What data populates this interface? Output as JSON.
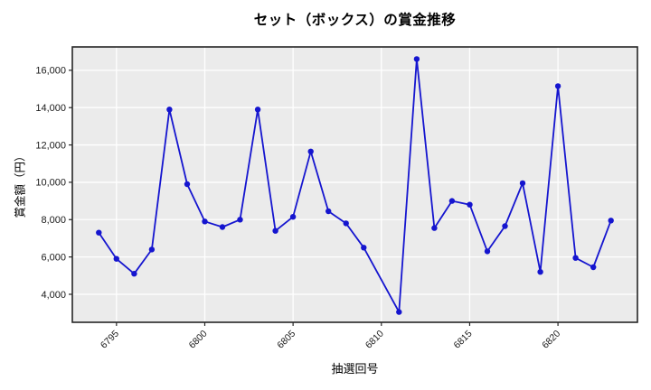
{
  "chart_data": {
    "type": "line",
    "title": "セット（ボックス）の賞金推移",
    "xlabel": "抽選回号",
    "ylabel": "賞金額（円）",
    "x": [
      6794,
      6795,
      6796,
      6797,
      6798,
      6799,
      6800,
      6801,
      6802,
      6803,
      6804,
      6805,
      6806,
      6807,
      6808,
      6809,
      6811,
      6812,
      6813,
      6814,
      6815,
      6816,
      6817,
      6818,
      6819,
      6820,
      6821,
      6822,
      6823
    ],
    "y": [
      7300,
      5900,
      5100,
      6400,
      13900,
      9900,
      7900,
      7600,
      8000,
      13900,
      7400,
      8150,
      11650,
      8450,
      7800,
      6500,
      3050,
      16600,
      7550,
      9000,
      8800,
      6300,
      7650,
      9950,
      5200,
      15150,
      5950,
      5450,
      7950
    ],
    "x_ticks": [
      6795,
      6800,
      6805,
      6810,
      6815,
      6820
    ],
    "y_ticks": [
      4000,
      6000,
      8000,
      10000,
      12000,
      14000,
      16000
    ],
    "xlim": [
      6792.5,
      6824.5
    ],
    "ylim": [
      2500,
      17250
    ],
    "grid": true,
    "legend": null,
    "colors": {
      "line": "#1515cf",
      "marker": "#1515cf",
      "plot_background": "#ebebeb",
      "grid": "#ffffff",
      "frame": "#262626",
      "tick_text": "#1a1a1a"
    }
  }
}
